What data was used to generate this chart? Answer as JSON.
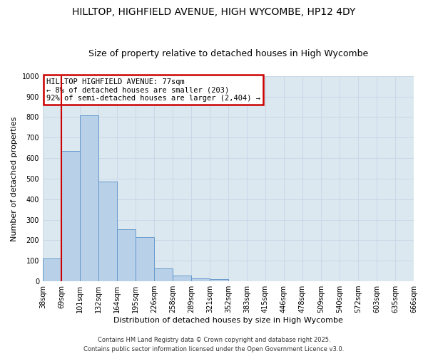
{
  "title": "HILLTOP, HIGHFIELD AVENUE, HIGH WYCOMBE, HP12 4DY",
  "subtitle": "Size of property relative to detached houses in High Wycombe",
  "xlabel": "Distribution of detached houses by size in High Wycombe",
  "ylabel": "Number of detached properties",
  "bar_values": [
    110,
    635,
    810,
    485,
    255,
    215,
    63,
    28,
    15,
    10,
    0,
    0,
    0,
    0,
    0,
    0,
    0,
    0,
    0,
    0
  ],
  "bar_labels": [
    "38sqm",
    "69sqm",
    "101sqm",
    "132sqm",
    "164sqm",
    "195sqm",
    "226sqm",
    "258sqm",
    "289sqm",
    "321sqm",
    "352sqm",
    "383sqm",
    "415sqm",
    "446sqm",
    "478sqm",
    "509sqm",
    "540sqm",
    "572sqm",
    "603sqm",
    "635sqm",
    "666sqm"
  ],
  "bar_color": "#b8d0e8",
  "bar_edge_color": "#6699cc",
  "ylim": [
    0,
    1000
  ],
  "yticks": [
    0,
    100,
    200,
    300,
    400,
    500,
    600,
    700,
    800,
    900,
    1000
  ],
  "red_line_color": "#cc0000",
  "annotation_title": "HILLTOP HIGHFIELD AVENUE: 77sqm",
  "annotation_line1": "← 8% of detached houses are smaller (203)",
  "annotation_line2": "92% of semi-detached houses are larger (2,404) →",
  "annotation_box_color": "#ffffff",
  "annotation_border_color": "#cc0000",
  "footer1": "Contains HM Land Registry data © Crown copyright and database right 2025.",
  "footer2": "Contains public sector information licensed under the Open Government Licence v3.0.",
  "background_color": "#ffffff",
  "plot_bg_color": "#dce8f0",
  "grid_color": "#c8d8e8",
  "title_fontsize": 10,
  "subtitle_fontsize": 9,
  "axis_label_fontsize": 8,
  "tick_fontsize": 7,
  "annotation_fontsize": 7.5,
  "footer_fontsize": 6
}
